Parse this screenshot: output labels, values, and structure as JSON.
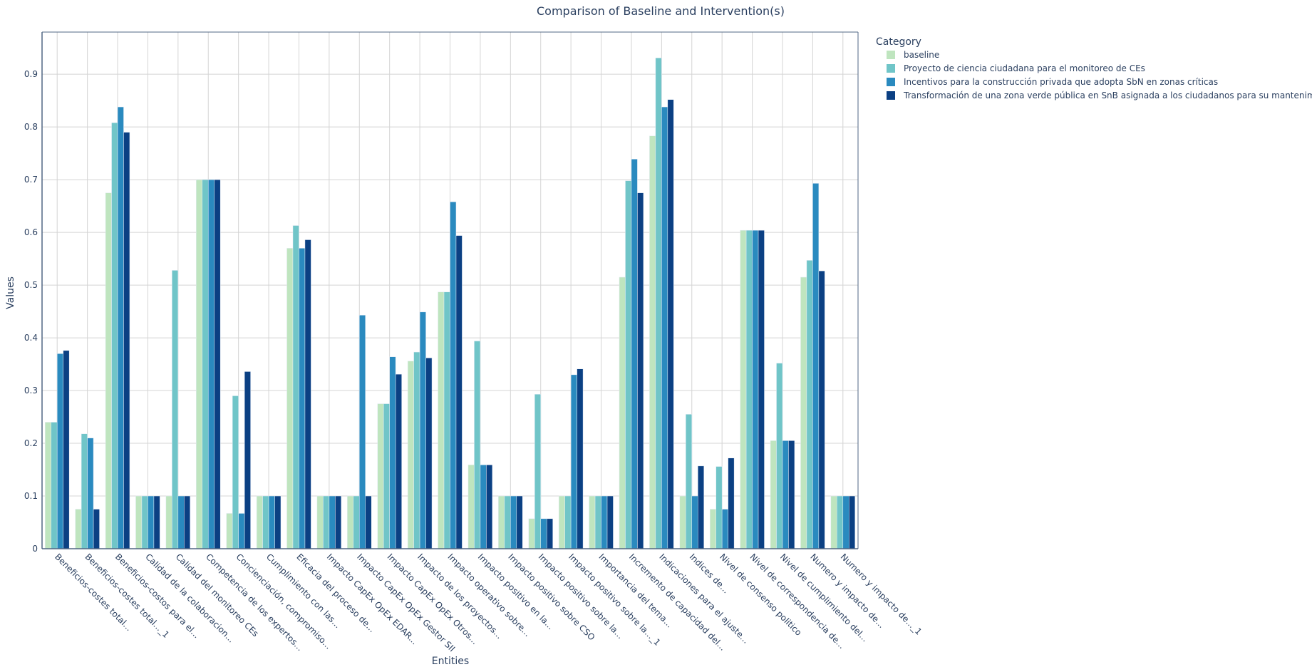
{
  "chart_data": {
    "type": "bar",
    "title": "Comparison of Baseline and Intervention(s)",
    "xlabel": "Entities",
    "ylabel": "Values",
    "ylim": [
      0,
      0.98
    ],
    "yticks": [
      0,
      0.1,
      0.2,
      0.3,
      0.4,
      0.5,
      0.6,
      0.7,
      0.8,
      0.9
    ],
    "grid": true,
    "legend_title": "Category",
    "legend_position": "top-right",
    "categories": [
      "Beneficios-costes total...",
      "Beneficios-costes total..._1",
      "Beneficios-costos para el...",
      "Calidad de la colaboracion...",
      "Calidad del monitoreo CEs",
      "Competencia de los expertos...",
      "Concienciación, compromiso...",
      "Cumplimiento con las...",
      "Eficacia del proceso de...",
      "Impacto CapEx OpEx EDAR...",
      "Impacto CapEx OpEx Gestor SII",
      "Impacto CapEx OpEx Otros...",
      "Impacto de los proyectos...",
      "Impacto operativo sobre...",
      "Impacto positivo en la...",
      "Impacto positivo sobre CSO",
      "Impacto positivo sobre la...",
      "Impacto positivo sobre la..._1",
      "Importancia del tema...",
      "Incremento de capacidad del...",
      "Indicaciones para el ajuste...",
      "Indices de...",
      "Nivel de consenso politico",
      "Nivel de correspondencia de...",
      "Nivel de cumplimiento del...",
      "Numero y impacto de...",
      "Numero y impacto de..._1"
    ],
    "series": [
      {
        "name": "baseline",
        "color": "#bfe5bf",
        "values": [
          0.24,
          0.075,
          0.675,
          0.1,
          0.1,
          0.7,
          0.067,
          0.1,
          0.57,
          0.1,
          0.1,
          0.275,
          0.356,
          0.487,
          0.159,
          0.1,
          0.057,
          0.1,
          0.1,
          0.515,
          0.783,
          0.1,
          0.075,
          0.604,
          0.205,
          0.515,
          0.1
        ]
      },
      {
        "name": "Proyecto de ciencia ciudadana para el monitoreo de CEs",
        "color": "#70c5c8",
        "values": [
          0.24,
          0.218,
          0.808,
          0.1,
          0.528,
          0.7,
          0.29,
          0.1,
          0.613,
          0.1,
          0.1,
          0.275,
          0.373,
          0.487,
          0.394,
          0.1,
          0.293,
          0.1,
          0.1,
          0.698,
          0.931,
          0.255,
          0.156,
          0.604,
          0.352,
          0.547,
          0.1
        ]
      },
      {
        "name": "Incentivos para la construcción privada que adopta SbN en zonas críticas",
        "color": "#2a8abf",
        "values": [
          0.37,
          0.21,
          0.838,
          0.1,
          0.1,
          0.7,
          0.067,
          0.1,
          0.57,
          0.1,
          0.443,
          0.364,
          0.449,
          0.658,
          0.159,
          0.1,
          0.057,
          0.33,
          0.1,
          0.739,
          0.838,
          0.1,
          0.075,
          0.604,
          0.205,
          0.693,
          0.1
        ]
      },
      {
        "name": "Transformación de una zona verde pública en SnB asignada a los ciudadanos para su mantenimiento",
        "color": "#0b4083",
        "values": [
          0.376,
          0.075,
          0.79,
          0.1,
          0.1,
          0.7,
          0.336,
          0.1,
          0.586,
          0.1,
          0.1,
          0.331,
          0.362,
          0.594,
          0.159,
          0.1,
          0.057,
          0.341,
          0.1,
          0.675,
          0.852,
          0.157,
          0.172,
          0.604,
          0.205,
          0.527,
          0.1
        ]
      }
    ]
  }
}
